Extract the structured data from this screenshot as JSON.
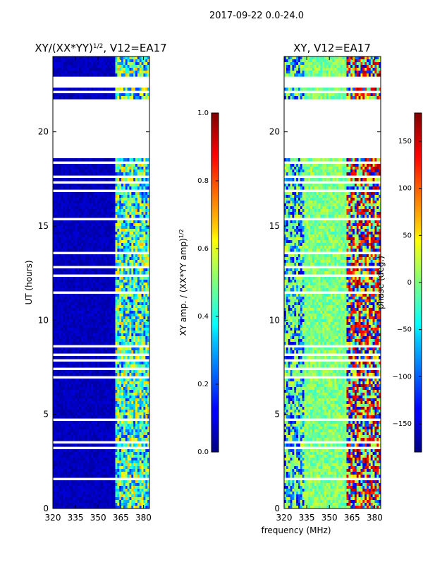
{
  "suptitle": "2017-09-22 0.0-24.0",
  "chart_data": [
    {
      "type": "heatmap",
      "title_main": "XY/(XX*YY)",
      "title_sup": "1/2",
      "title_tail": ", V12=EA17",
      "xlabel": "frequency (MHz)",
      "ylabel": "UT (hours)",
      "xlim": [
        320,
        384
      ],
      "ylim": [
        0,
        24
      ],
      "xticks": [
        320,
        335,
        350,
        365,
        380
      ],
      "yticks": [
        0,
        5,
        10,
        15,
        20
      ],
      "colorbar": {
        "label_main": "XY amp. / (XX*YY amp)",
        "label_sup": "1/2",
        "range": [
          0.0,
          1.0
        ],
        "ticks": [
          "0.0",
          "0.2",
          "0.4",
          "0.6",
          "0.8",
          "1.0"
        ],
        "tick_values": [
          0.0,
          0.2,
          0.4,
          0.6,
          0.8,
          1.0
        ],
        "colormap": "jet"
      },
      "white_gaps_hours": [
        [
          0.55,
          0.65
        ],
        [
          1.45,
          1.6
        ],
        [
          3.2,
          3.3
        ],
        [
          3.5,
          3.6
        ],
        [
          4.7,
          4.85
        ],
        [
          6.9,
          7.05
        ],
        [
          7.3,
          7.5
        ],
        [
          7.8,
          7.95
        ],
        [
          8.1,
          8.25
        ],
        [
          8.6,
          8.7
        ],
        [
          11.05,
          11.15
        ],
        [
          11.35,
          11.6
        ],
        [
          12.35,
          12.45
        ],
        [
          12.75,
          12.85
        ],
        [
          13.5,
          13.6
        ],
        [
          14.05,
          14.15
        ],
        [
          15.3,
          15.4
        ],
        [
          16.75,
          16.9
        ],
        [
          17.2,
          17.4
        ],
        [
          17.55,
          17.65
        ],
        [
          18.25,
          18.5
        ],
        [
          18.6,
          21.8
        ],
        [
          22.1,
          22.2
        ],
        [
          22.3,
          22.9
        ]
      ]
    },
    {
      "type": "heatmap",
      "title": "XY, V12=EA17",
      "xlim": [
        320,
        384
      ],
      "ylim": [
        0,
        24
      ],
      "xticks": [
        320,
        335,
        350,
        365,
        380
      ],
      "yticks": [
        0,
        5,
        10,
        15,
        20
      ],
      "colorbar": {
        "label": "phase (deg.)",
        "range": [
          -180,
          180
        ],
        "ticks": [
          "−150",
          "−100",
          "−50",
          "0",
          "50",
          "100",
          "150"
        ],
        "tick_values": [
          -150,
          -100,
          -50,
          0,
          50,
          100,
          150
        ],
        "colormap": "jet"
      },
      "white_gaps_hours": [
        [
          0.55,
          0.65
        ],
        [
          1.45,
          1.6
        ],
        [
          3.2,
          3.3
        ],
        [
          3.5,
          3.6
        ],
        [
          4.7,
          4.85
        ],
        [
          6.9,
          7.05
        ],
        [
          7.3,
          7.5
        ],
        [
          7.8,
          7.95
        ],
        [
          8.1,
          8.25
        ],
        [
          8.6,
          8.7
        ],
        [
          11.05,
          11.15
        ],
        [
          11.35,
          11.6
        ],
        [
          12.35,
          12.45
        ],
        [
          12.75,
          12.85
        ],
        [
          13.5,
          13.6
        ],
        [
          14.05,
          14.15
        ],
        [
          15.3,
          15.4
        ],
        [
          16.75,
          16.9
        ],
        [
          17.2,
          17.4
        ],
        [
          17.55,
          17.65
        ],
        [
          18.25,
          18.5
        ],
        [
          18.6,
          21.8
        ],
        [
          22.1,
          22.2
        ],
        [
          22.3,
          22.9
        ]
      ]
    }
  ]
}
